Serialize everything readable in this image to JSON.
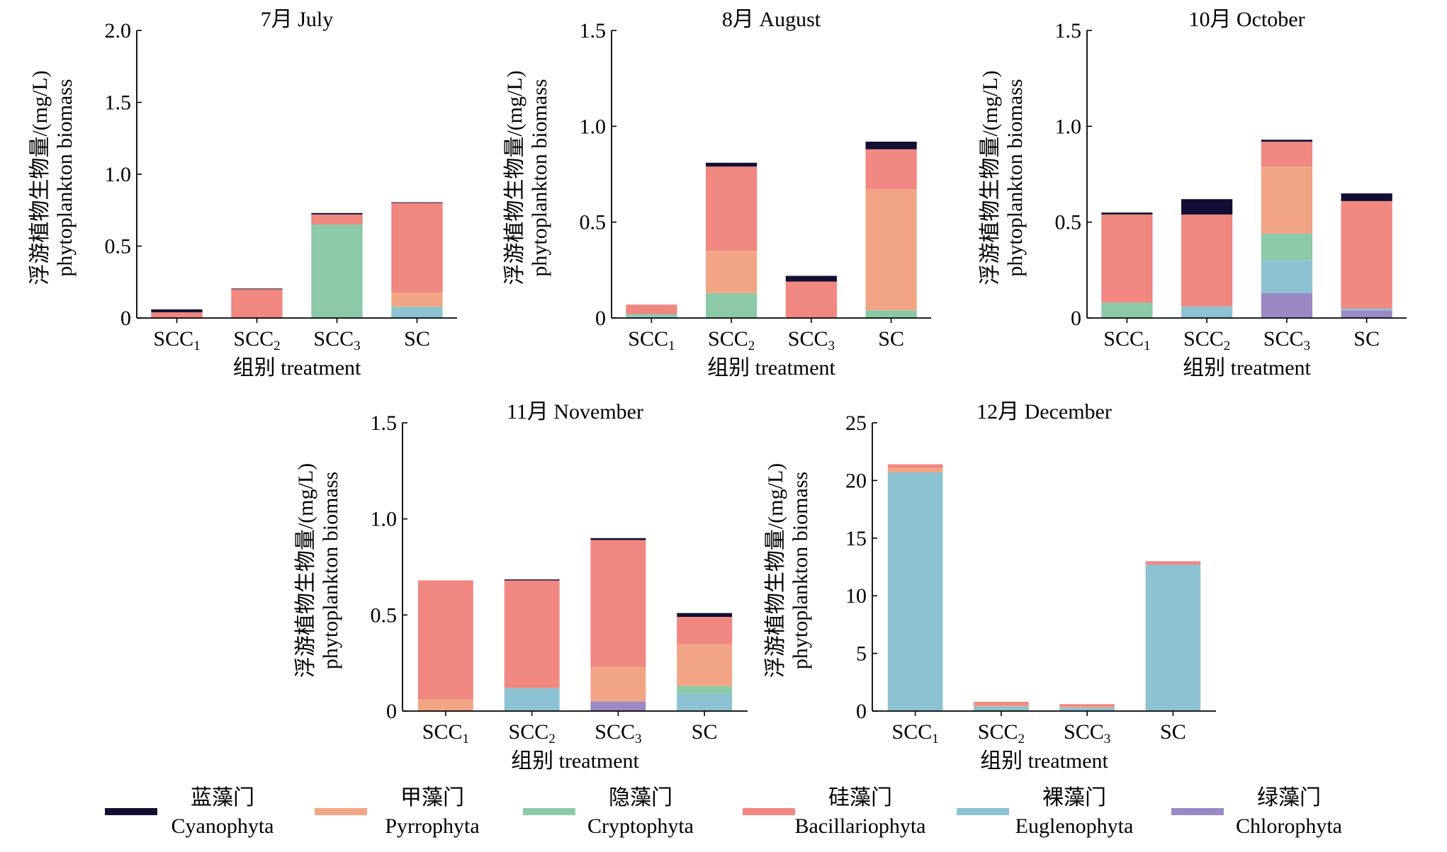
{
  "colors": {
    "Cyanophyta": "#120f33",
    "Pyrrophyta": "#f2a585",
    "Cryptophyta": "#8bc9a8",
    "Bacillariophyta": "#f08780",
    "Euglenophyta": "#8cc2d1",
    "Chlorophyta": "#9b88c5"
  },
  "legend": [
    {
      "key": "Cyanophyta",
      "zh": "蓝藻门",
      "en": "Cyanophyta"
    },
    {
      "key": "Pyrrophyta",
      "zh": "甲藻门",
      "en": "Pyrrophyta"
    },
    {
      "key": "Cryptophyta",
      "zh": "隐藻门",
      "en": "Cryptophyta"
    },
    {
      "key": "Bacillariophyta",
      "zh": "硅藻门",
      "en": "Bacillariophyta"
    },
    {
      "key": "Euglenophyta",
      "zh": "裸藻门",
      "en": "Euglenophyta"
    },
    {
      "key": "Chlorophyta",
      "zh": "绿藻门",
      "en": "Chlorophyta"
    }
  ],
  "chart_data": [
    {
      "type": "bar",
      "stacked": true,
      "title": "7月 July",
      "ylabel_zh": "浮游植物生物量/(mg/L)",
      "ylabel_en": "phytoplankton biomass",
      "xlabel": "组别 treatment",
      "categories": [
        {
          "base": "SCC",
          "sub": "1"
        },
        {
          "base": "SCC",
          "sub": "2"
        },
        {
          "base": "SCC",
          "sub": "3"
        },
        {
          "base": "SC",
          "sub": ""
        }
      ],
      "ylim": [
        0,
        2.0
      ],
      "yticks": [
        "0",
        "0.5",
        "1.0",
        "1.5",
        "2.0"
      ],
      "ytick_values": [
        0,
        0.5,
        1.0,
        1.5,
        2.0
      ],
      "series": [
        {
          "name": "Chlorophyta",
          "values": [
            0,
            0,
            0,
            0
          ]
        },
        {
          "name": "Euglenophyta",
          "values": [
            0,
            0,
            0,
            0.07
          ]
        },
        {
          "name": "Cryptophyta",
          "values": [
            0,
            0,
            0.65,
            0.01
          ]
        },
        {
          "name": "Pyrrophyta",
          "values": [
            0,
            0,
            0,
            0.1
          ]
        },
        {
          "name": "Bacillariophyta",
          "values": [
            0.04,
            0.2,
            0.07,
            0.62
          ]
        },
        {
          "name": "Cyanophyta",
          "values": [
            0.02,
            0.005,
            0.01,
            0.005
          ]
        }
      ]
    },
    {
      "type": "bar",
      "stacked": true,
      "title": "8月 August",
      "ylabel_zh": "浮游植物生物量/(mg/L)",
      "ylabel_en": "phytoplankton biomass",
      "xlabel": "组别 treatment",
      "categories": [
        {
          "base": "SCC",
          "sub": "1"
        },
        {
          "base": "SCC",
          "sub": "2"
        },
        {
          "base": "SCC",
          "sub": "3"
        },
        {
          "base": "SC",
          "sub": ""
        }
      ],
      "ylim": [
        0,
        1.5
      ],
      "yticks": [
        "0",
        "0.5",
        "1.0",
        "1.5"
      ],
      "ytick_values": [
        0,
        0.5,
        1.0,
        1.5
      ],
      "series": [
        {
          "name": "Chlorophyta",
          "values": [
            0,
            0,
            0,
            0
          ]
        },
        {
          "name": "Euglenophyta",
          "values": [
            0.01,
            0,
            0,
            0
          ]
        },
        {
          "name": "Cryptophyta",
          "values": [
            0.01,
            0.13,
            0,
            0.04
          ]
        },
        {
          "name": "Pyrrophyta",
          "values": [
            0,
            0.22,
            0,
            0.63
          ]
        },
        {
          "name": "Bacillariophyta",
          "values": [
            0.05,
            0.44,
            0.19,
            0.21
          ]
        },
        {
          "name": "Cyanophyta",
          "values": [
            0,
            0.02,
            0.03,
            0.04
          ]
        }
      ]
    },
    {
      "type": "bar",
      "stacked": true,
      "title": "10月 October",
      "ylabel_zh": "浮游植物生物量/(mg/L)",
      "ylabel_en": "phytoplankton biomass",
      "xlabel": "组别 treatment",
      "categories": [
        {
          "base": "SCC",
          "sub": "1"
        },
        {
          "base": "SCC",
          "sub": "2"
        },
        {
          "base": "SCC",
          "sub": "3"
        },
        {
          "base": "SC",
          "sub": ""
        }
      ],
      "ylim": [
        0,
        1.5
      ],
      "yticks": [
        "0",
        "0.5",
        "1.0",
        "1.5"
      ],
      "ytick_values": [
        0,
        0.5,
        1.0,
        1.5
      ],
      "series": [
        {
          "name": "Chlorophyta",
          "values": [
            0,
            0,
            0.13,
            0.04
          ]
        },
        {
          "name": "Euglenophyta",
          "values": [
            0,
            0.06,
            0.17,
            0.01
          ]
        },
        {
          "name": "Cryptophyta",
          "values": [
            0.08,
            0,
            0.14,
            0
          ]
        },
        {
          "name": "Pyrrophyta",
          "values": [
            0,
            0,
            0.35,
            0
          ]
        },
        {
          "name": "Bacillariophyta",
          "values": [
            0.46,
            0.48,
            0.13,
            0.56
          ]
        },
        {
          "name": "Cyanophyta",
          "values": [
            0.01,
            0.08,
            0.01,
            0.04
          ]
        }
      ]
    },
    {
      "type": "bar",
      "stacked": true,
      "title": "11月 November",
      "ylabel_zh": "浮游植物生物量/(mg/L)",
      "ylabel_en": "phytoplankton biomass",
      "xlabel": "组别 treatment",
      "categories": [
        {
          "base": "SCC",
          "sub": "1"
        },
        {
          "base": "SCC",
          "sub": "2"
        },
        {
          "base": "SCC",
          "sub": "3"
        },
        {
          "base": "SC",
          "sub": ""
        }
      ],
      "ylim": [
        0,
        1.5
      ],
      "yticks": [
        "0",
        "0.5",
        "1.0",
        "1.5"
      ],
      "ytick_values": [
        0,
        0.5,
        1.0,
        1.5
      ],
      "series": [
        {
          "name": "Chlorophyta",
          "values": [
            0,
            0,
            0.05,
            0
          ]
        },
        {
          "name": "Euglenophyta",
          "values": [
            0,
            0.12,
            0,
            0.09
          ]
        },
        {
          "name": "Cryptophyta",
          "values": [
            0,
            0,
            0,
            0.04
          ]
        },
        {
          "name": "Pyrrophyta",
          "values": [
            0.06,
            0,
            0.18,
            0.22
          ]
        },
        {
          "name": "Bacillariophyta",
          "values": [
            0.62,
            0.56,
            0.66,
            0.14
          ]
        },
        {
          "name": "Cyanophyta",
          "values": [
            0,
            0.005,
            0.01,
            0.02
          ]
        }
      ]
    },
    {
      "type": "bar",
      "stacked": true,
      "title": "12月 December",
      "ylabel_zh": "浮游植物生物量/(mg/L)",
      "ylabel_en": "phytoplankton biomass",
      "xlabel": "组别 treatment",
      "categories": [
        {
          "base": "SCC",
          "sub": "1"
        },
        {
          "base": "SCC",
          "sub": "2"
        },
        {
          "base": "SCC",
          "sub": "3"
        },
        {
          "base": "SC",
          "sub": ""
        }
      ],
      "ylim": [
        0,
        25
      ],
      "yticks": [
        "0",
        "5",
        "10",
        "15",
        "20",
        "25"
      ],
      "ytick_values": [
        0,
        5,
        10,
        15,
        20,
        25
      ],
      "series": [
        {
          "name": "Chlorophyta",
          "values": [
            0,
            0,
            0,
            0
          ]
        },
        {
          "name": "Euglenophyta",
          "values": [
            20.7,
            0.4,
            0.3,
            12.7
          ]
        },
        {
          "name": "Cryptophyta",
          "values": [
            0,
            0,
            0,
            0
          ]
        },
        {
          "name": "Pyrrophyta",
          "values": [
            0.4,
            0.1,
            0.1,
            0
          ]
        },
        {
          "name": "Bacillariophyta",
          "values": [
            0.3,
            0.3,
            0.2,
            0.3
          ]
        },
        {
          "name": "Cyanophyta",
          "values": [
            0,
            0,
            0,
            0
          ]
        }
      ]
    }
  ]
}
